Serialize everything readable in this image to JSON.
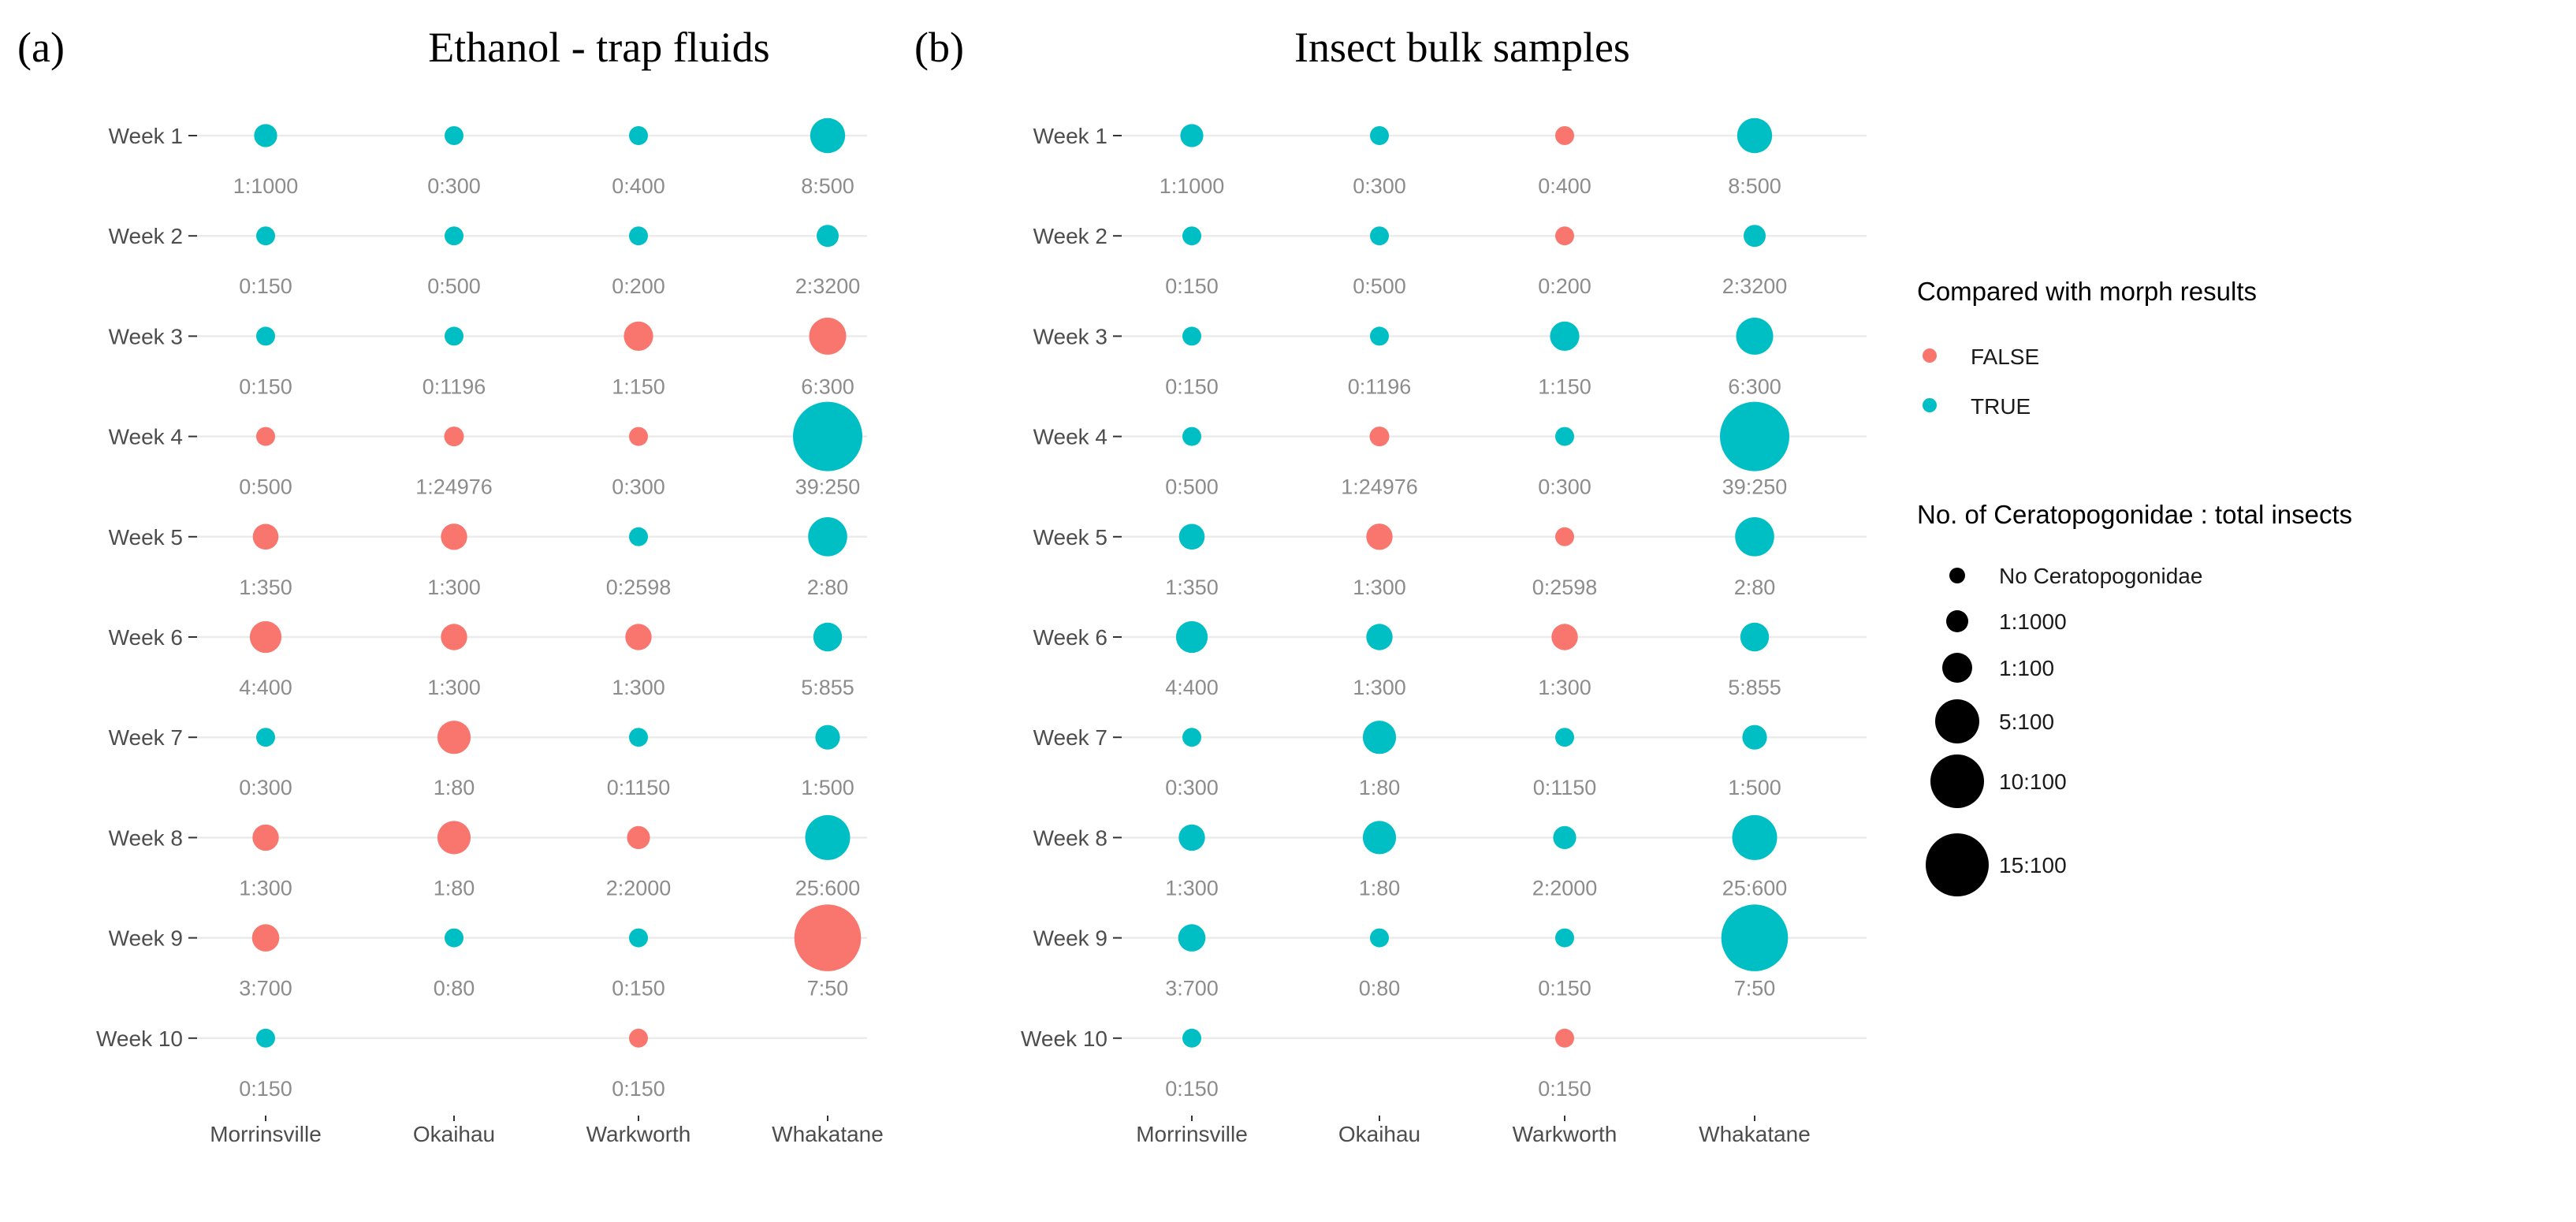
{
  "colors": {
    "false": "#F8766D",
    "true": "#00BFC4",
    "grid": "#EBEBEB",
    "ratio_text": "#8c8c8c",
    "axis_text": "#4d4d4d",
    "size_key": "#000000"
  },
  "panels": [
    {
      "tag": "(a)",
      "title": "Ethanol - trap fluids"
    },
    {
      "tag": "(b)",
      "title": "Insect bulk samples"
    }
  ],
  "legend": {
    "color_title": "Compared with morph results",
    "color_items": [
      {
        "label": "FALSE",
        "color": "#F8766D"
      },
      {
        "label": "TRUE",
        "color": "#00BFC4"
      }
    ],
    "size_title": "No. of Ceratopogonidae : total insects",
    "size_items": [
      {
        "label": "No Ceratopogonidae",
        "percent": 0
      },
      {
        "label": "1:1000",
        "percent": 0.1
      },
      {
        "label": "1:100",
        "percent": 1
      },
      {
        "label": "5:100",
        "percent": 5
      },
      {
        "label": "10:100",
        "percent": 10
      },
      {
        "label": "15:100",
        "percent": 15
      }
    ]
  },
  "chart_data": [
    {
      "type": "scatter",
      "title": "Ethanol - trap fluids",
      "x_categories": [
        "Morrinsville",
        "Okaihau",
        "Warkworth",
        "Whakatane"
      ],
      "y_categories": [
        "Week 1",
        "Week 2",
        "Week 3",
        "Week 4",
        "Week 5",
        "Week 6",
        "Week 7",
        "Week 8",
        "Week 9",
        "Week 10"
      ],
      "legend_placement": "right",
      "points": [
        {
          "site": "Morrinsville",
          "week": "Week 1",
          "ratio": "1:1000",
          "percent": 0.1,
          "match": true
        },
        {
          "site": "Okaihau",
          "week": "Week 1",
          "ratio": "0:300",
          "percent": 0,
          "match": true
        },
        {
          "site": "Warkworth",
          "week": "Week 1",
          "ratio": "0:400",
          "percent": 0,
          "match": true
        },
        {
          "site": "Whakatane",
          "week": "Week 1",
          "ratio": "8:500",
          "percent": 1.6,
          "match": true
        },
        {
          "site": "Morrinsville",
          "week": "Week 2",
          "ratio": "0:150",
          "percent": 0,
          "match": true
        },
        {
          "site": "Okaihau",
          "week": "Week 2",
          "ratio": "0:500",
          "percent": 0,
          "match": true
        },
        {
          "site": "Warkworth",
          "week": "Week 2",
          "ratio": "0:200",
          "percent": 0,
          "match": true
        },
        {
          "site": "Whakatane",
          "week": "Week 2",
          "ratio": "2:3200",
          "percent": 0.0625,
          "match": true
        },
        {
          "site": "Morrinsville",
          "week": "Week 3",
          "ratio": "0:150",
          "percent": 0,
          "match": true
        },
        {
          "site": "Okaihau",
          "week": "Week 3",
          "ratio": "0:1196",
          "percent": 0,
          "match": true
        },
        {
          "site": "Warkworth",
          "week": "Week 3",
          "ratio": "1:150",
          "percent": 0.667,
          "match": false
        },
        {
          "site": "Whakatane",
          "week": "Week 3",
          "ratio": "6:300",
          "percent": 2,
          "match": false
        },
        {
          "site": "Morrinsville",
          "week": "Week 4",
          "ratio": "0:500",
          "percent": 0,
          "match": false
        },
        {
          "site": "Okaihau",
          "week": "Week 4",
          "ratio": "1:24976",
          "percent": 0.004,
          "match": false
        },
        {
          "site": "Warkworth",
          "week": "Week 4",
          "ratio": "0:300",
          "percent": 0,
          "match": false
        },
        {
          "site": "Whakatane",
          "week": "Week 4",
          "ratio": "39:250",
          "percent": 15.6,
          "match": true
        },
        {
          "site": "Morrinsville",
          "week": "Week 5",
          "ratio": "1:350",
          "percent": 0.286,
          "match": false
        },
        {
          "site": "Okaihau",
          "week": "Week 5",
          "ratio": "1:300",
          "percent": 0.333,
          "match": false
        },
        {
          "site": "Warkworth",
          "week": "Week 5",
          "ratio": "0:2598",
          "percent": 0,
          "match": true
        },
        {
          "site": "Whakatane",
          "week": "Week 5",
          "ratio": "2:80",
          "percent": 2.5,
          "match": true
        },
        {
          "site": "Morrinsville",
          "week": "Week 6",
          "ratio": "4:400",
          "percent": 1,
          "match": false
        },
        {
          "site": "Okaihau",
          "week": "Week 6",
          "ratio": "1:300",
          "percent": 0.333,
          "match": false
        },
        {
          "site": "Warkworth",
          "week": "Week 6",
          "ratio": "1:300",
          "percent": 0.333,
          "match": false
        },
        {
          "site": "Whakatane",
          "week": "Week 6",
          "ratio": "5:855",
          "percent": 0.585,
          "match": true
        },
        {
          "site": "Morrinsville",
          "week": "Week 7",
          "ratio": "0:300",
          "percent": 0,
          "match": true
        },
        {
          "site": "Okaihau",
          "week": "Week 7",
          "ratio": "1:80",
          "percent": 1.25,
          "match": false
        },
        {
          "site": "Warkworth",
          "week": "Week 7",
          "ratio": "0:1150",
          "percent": 0,
          "match": true
        },
        {
          "site": "Whakatane",
          "week": "Week 7",
          "ratio": "1:500",
          "percent": 0.2,
          "match": true
        },
        {
          "site": "Morrinsville",
          "week": "Week 8",
          "ratio": "1:300",
          "percent": 0.333,
          "match": false
        },
        {
          "site": "Okaihau",
          "week": "Week 8",
          "ratio": "1:80",
          "percent": 1.25,
          "match": false
        },
        {
          "site": "Warkworth",
          "week": "Week 8",
          "ratio": "2:2000",
          "percent": 0.1,
          "match": false
        },
        {
          "site": "Whakatane",
          "week": "Week 8",
          "ratio": "25:600",
          "percent": 4.17,
          "match": true
        },
        {
          "site": "Morrinsville",
          "week": "Week 9",
          "ratio": "3:700",
          "percent": 0.429,
          "match": false
        },
        {
          "site": "Okaihau",
          "week": "Week 9",
          "ratio": "0:80",
          "percent": 0,
          "match": true
        },
        {
          "site": "Warkworth",
          "week": "Week 9",
          "ratio": "0:150",
          "percent": 0,
          "match": true
        },
        {
          "site": "Whakatane",
          "week": "Week 9",
          "ratio": "7:50",
          "percent": 14,
          "match": false
        },
        {
          "site": "Morrinsville",
          "week": "Week 10",
          "ratio": "0:150",
          "percent": 0,
          "match": true
        },
        {
          "site": "Warkworth",
          "week": "Week 10",
          "ratio": "0:150",
          "percent": 0,
          "match": false
        }
      ]
    },
    {
      "type": "scatter",
      "title": "Insect bulk samples",
      "x_categories": [
        "Morrinsville",
        "Okaihau",
        "Warkworth",
        "Whakatane"
      ],
      "y_categories": [
        "Week 1",
        "Week 2",
        "Week 3",
        "Week 4",
        "Week 5",
        "Week 6",
        "Week 7",
        "Week 8",
        "Week 9",
        "Week 10"
      ],
      "legend_placement": "right",
      "points": [
        {
          "site": "Morrinsville",
          "week": "Week 1",
          "ratio": "1:1000",
          "percent": 0.1,
          "match": true
        },
        {
          "site": "Okaihau",
          "week": "Week 1",
          "ratio": "0:300",
          "percent": 0,
          "match": true
        },
        {
          "site": "Warkworth",
          "week": "Week 1",
          "ratio": "0:400",
          "percent": 0,
          "match": false
        },
        {
          "site": "Whakatane",
          "week": "Week 1",
          "ratio": "8:500",
          "percent": 1.6,
          "match": true
        },
        {
          "site": "Morrinsville",
          "week": "Week 2",
          "ratio": "0:150",
          "percent": 0,
          "match": true
        },
        {
          "site": "Okaihau",
          "week": "Week 2",
          "ratio": "0:500",
          "percent": 0,
          "match": true
        },
        {
          "site": "Warkworth",
          "week": "Week 2",
          "ratio": "0:200",
          "percent": 0,
          "match": false
        },
        {
          "site": "Whakatane",
          "week": "Week 2",
          "ratio": "2:3200",
          "percent": 0.0625,
          "match": true
        },
        {
          "site": "Morrinsville",
          "week": "Week 3",
          "ratio": "0:150",
          "percent": 0,
          "match": true
        },
        {
          "site": "Okaihau",
          "week": "Week 3",
          "ratio": "0:1196",
          "percent": 0,
          "match": true
        },
        {
          "site": "Warkworth",
          "week": "Week 3",
          "ratio": "1:150",
          "percent": 0.667,
          "match": true
        },
        {
          "site": "Whakatane",
          "week": "Week 3",
          "ratio": "6:300",
          "percent": 2,
          "match": true
        },
        {
          "site": "Morrinsville",
          "week": "Week 4",
          "ratio": "0:500",
          "percent": 0,
          "match": true
        },
        {
          "site": "Okaihau",
          "week": "Week 4",
          "ratio": "1:24976",
          "percent": 0.004,
          "match": false
        },
        {
          "site": "Warkworth",
          "week": "Week 4",
          "ratio": "0:300",
          "percent": 0,
          "match": true
        },
        {
          "site": "Whakatane",
          "week": "Week 4",
          "ratio": "39:250",
          "percent": 15.6,
          "match": true
        },
        {
          "site": "Morrinsville",
          "week": "Week 5",
          "ratio": "1:350",
          "percent": 0.286,
          "match": true
        },
        {
          "site": "Okaihau",
          "week": "Week 5",
          "ratio": "1:300",
          "percent": 0.333,
          "match": false
        },
        {
          "site": "Warkworth",
          "week": "Week 5",
          "ratio": "0:2598",
          "percent": 0,
          "match": false
        },
        {
          "site": "Whakatane",
          "week": "Week 5",
          "ratio": "2:80",
          "percent": 2.5,
          "match": true
        },
        {
          "site": "Morrinsville",
          "week": "Week 6",
          "ratio": "4:400",
          "percent": 1,
          "match": true
        },
        {
          "site": "Okaihau",
          "week": "Week 6",
          "ratio": "1:300",
          "percent": 0.333,
          "match": true
        },
        {
          "site": "Warkworth",
          "week": "Week 6",
          "ratio": "1:300",
          "percent": 0.333,
          "match": false
        },
        {
          "site": "Whakatane",
          "week": "Week 6",
          "ratio": "5:855",
          "percent": 0.585,
          "match": true
        },
        {
          "site": "Morrinsville",
          "week": "Week 7",
          "ratio": "0:300",
          "percent": 0,
          "match": true
        },
        {
          "site": "Okaihau",
          "week": "Week 7",
          "ratio": "1:80",
          "percent": 1.25,
          "match": true
        },
        {
          "site": "Warkworth",
          "week": "Week 7",
          "ratio": "0:1150",
          "percent": 0,
          "match": true
        },
        {
          "site": "Whakatane",
          "week": "Week 7",
          "ratio": "1:500",
          "percent": 0.2,
          "match": true
        },
        {
          "site": "Morrinsville",
          "week": "Week 8",
          "ratio": "1:300",
          "percent": 0.333,
          "match": true
        },
        {
          "site": "Okaihau",
          "week": "Week 8",
          "ratio": "1:80",
          "percent": 1.25,
          "match": true
        },
        {
          "site": "Warkworth",
          "week": "Week 8",
          "ratio": "2:2000",
          "percent": 0.1,
          "match": true
        },
        {
          "site": "Whakatane",
          "week": "Week 8",
          "ratio": "25:600",
          "percent": 4.17,
          "match": true
        },
        {
          "site": "Morrinsville",
          "week": "Week 9",
          "ratio": "3:700",
          "percent": 0.429,
          "match": true
        },
        {
          "site": "Okaihau",
          "week": "Week 9",
          "ratio": "0:80",
          "percent": 0,
          "match": true
        },
        {
          "site": "Warkworth",
          "week": "Week 9",
          "ratio": "0:150",
          "percent": 0,
          "match": true
        },
        {
          "site": "Whakatane",
          "week": "Week 9",
          "ratio": "7:50",
          "percent": 14,
          "match": true
        },
        {
          "site": "Morrinsville",
          "week": "Week 10",
          "ratio": "0:150",
          "percent": 0,
          "match": true
        },
        {
          "site": "Warkworth",
          "week": "Week 10",
          "ratio": "0:150",
          "percent": 0,
          "match": false
        }
      ]
    }
  ]
}
